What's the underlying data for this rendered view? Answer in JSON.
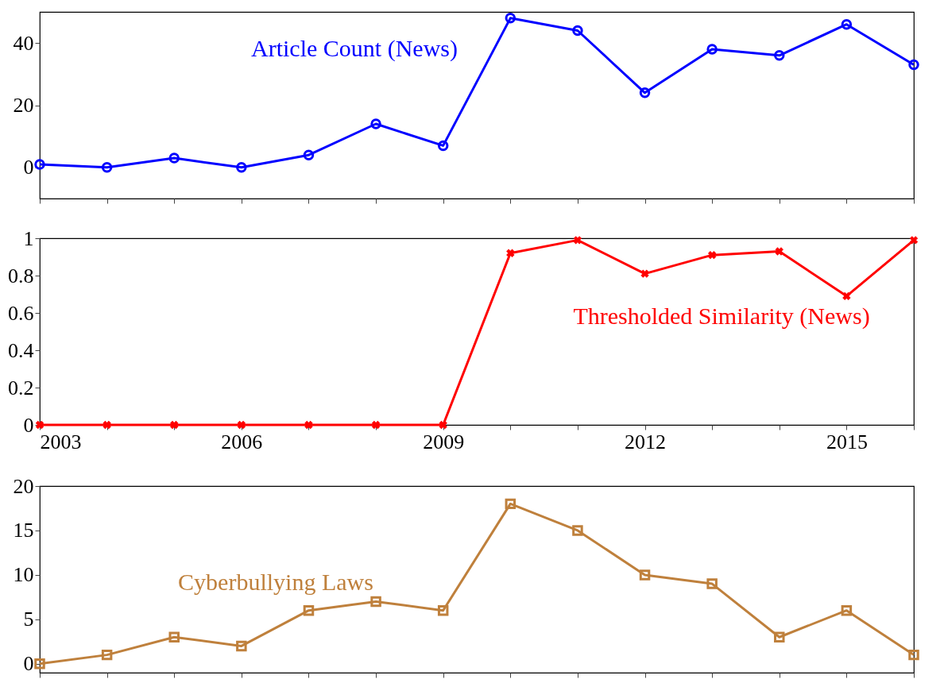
{
  "chart_data": [
    {
      "type": "line",
      "x": [
        2003,
        2004,
        2005,
        2006,
        2007,
        2008,
        2009,
        2010,
        2011,
        2012,
        2013,
        2014,
        2015,
        2016
      ],
      "xlim": [
        2003,
        2016
      ],
      "xticks": [
        2003,
        {
          "value": 2004,
          "label": null
        },
        {
          "value": 2005,
          "label": null
        },
        2006,
        {
          "value": 2007,
          "label": null
        },
        {
          "value": 2008,
          "label": null
        },
        2009,
        {
          "value": 2010,
          "label": null
        },
        {
          "value": 2011,
          "label": null
        },
        2012,
        {
          "value": 2013,
          "label": null
        },
        {
          "value": 2014,
          "label": null
        },
        2015,
        {
          "value": 2016,
          "label": null
        }
      ],
      "ylim": [
        -10,
        50
      ],
      "yticks": [
        0,
        20,
        40
      ],
      "tick_labels": "y",
      "marker": "circle",
      "grid": false,
      "series": [
        {
          "name": "Article Count (News)",
          "color": "#0000ff",
          "values": [
            1,
            0,
            3,
            0,
            4,
            14,
            7,
            48,
            44,
            24,
            38,
            36,
            46,
            33
          ]
        }
      ]
    },
    {
      "type": "line",
      "x": [
        2003,
        2004,
        2005,
        2006,
        2007,
        2008,
        2009,
        2010,
        2011,
        2012,
        2013,
        2014,
        2015,
        2016
      ],
      "xlim": [
        2003,
        2016
      ],
      "xticks": [
        2003,
        {
          "value": 2004,
          "label": null
        },
        {
          "value": 2005,
          "label": null
        },
        2006,
        {
          "value": 2007,
          "label": null
        },
        {
          "value": 2008,
          "label": null
        },
        2009,
        {
          "value": 2010,
          "label": null
        },
        {
          "value": 2011,
          "label": null
        },
        2012,
        {
          "value": 2013,
          "label": null
        },
        {
          "value": 2014,
          "label": null
        },
        2015,
        {
          "value": 2016,
          "label": null
        }
      ],
      "ylim": [
        0,
        1
      ],
      "yticks": [
        0,
        0.2,
        0.4,
        0.6,
        0.8,
        1
      ],
      "marker": "cross",
      "grid": false,
      "series": [
        {
          "name": "Thresholded Similarity (News)",
          "color": "#ff0000",
          "values": [
            0,
            0,
            0,
            0,
            0,
            0,
            0,
            0.92,
            0.99,
            0.81,
            0.91,
            0.93,
            0.69,
            0.99
          ]
        }
      ]
    },
    {
      "type": "line",
      "x": [
        2003,
        2004,
        2005,
        2006,
        2007,
        2008,
        2009,
        2010,
        2011,
        2012,
        2013,
        2014,
        2015,
        2016
      ],
      "xlim": [
        2003,
        2016
      ],
      "xticks": [
        2003,
        {
          "value": 2004,
          "label": null
        },
        {
          "value": 2005,
          "label": null
        },
        2006,
        {
          "value": 2007,
          "label": null
        },
        {
          "value": 2008,
          "label": null
        },
        2009,
        {
          "value": 2010,
          "label": null
        },
        {
          "value": 2011,
          "label": null
        },
        2012,
        {
          "value": 2013,
          "label": null
        },
        {
          "value": 2014,
          "label": null
        },
        2015,
        {
          "value": 2016,
          "label": null
        }
      ],
      "ylim": [
        -1,
        20
      ],
      "yticks": [
        0,
        5,
        10,
        15,
        20
      ],
      "tick_labels": "y",
      "marker": "square",
      "grid": false,
      "series": [
        {
          "name": "Cyberbullying Laws",
          "color": "#bf803c",
          "values": [
            0,
            1,
            3,
            2,
            6,
            7,
            6,
            18,
            15,
            10,
            9,
            3,
            6,
            1
          ]
        }
      ]
    }
  ]
}
